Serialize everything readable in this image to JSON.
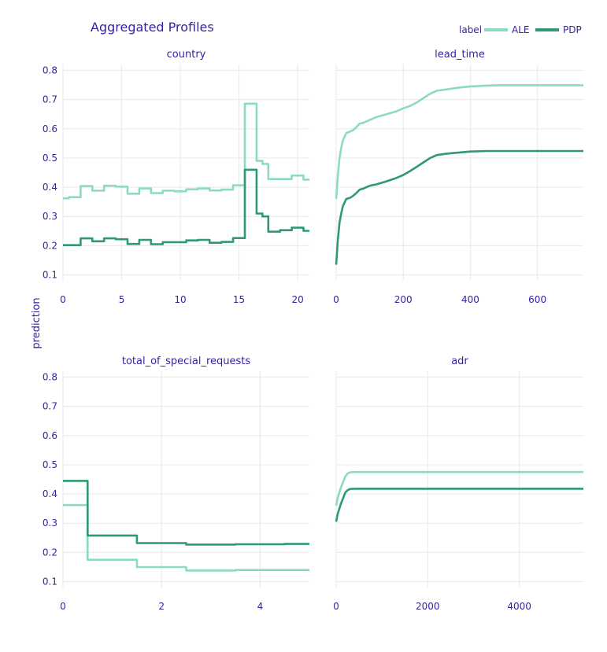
{
  "title": "Aggregated Profiles",
  "ylabel": "prediction",
  "legend": {
    "title": "label",
    "items": [
      "ALE",
      "PDP"
    ],
    "placement": "top-right"
  },
  "colors": {
    "ALE": "#8bdcbe",
    "PDP": "#2e9a6e",
    "text": "#371ea3",
    "grid": "#ebebeb"
  },
  "chart_data": [
    {
      "type": "line",
      "title": "country",
      "xlim": [
        0,
        21
      ],
      "ylim": [
        0.08,
        0.82
      ],
      "xticks": [
        0,
        5,
        10,
        15,
        20
      ],
      "yticks": [
        0.1,
        0.2,
        0.3,
        0.4,
        0.5,
        0.6,
        0.7,
        0.8
      ],
      "series": [
        {
          "name": "ALE",
          "x": [
            0,
            0.5,
            0.5,
            1.5,
            1.5,
            2.5,
            2.5,
            3.5,
            3.5,
            4.5,
            4.5,
            5.5,
            5.5,
            6.5,
            6.5,
            7.5,
            7.5,
            8.5,
            8.5,
            9.5,
            9.5,
            10.5,
            10.5,
            11.5,
            11.5,
            12.5,
            12.5,
            13.5,
            13.5,
            14.5,
            14.5,
            15.5,
            15.5,
            16.5,
            16.5,
            17,
            17,
            17.5,
            17.5,
            18.5,
            18.5,
            19.5,
            19.5,
            20.5,
            20.5,
            21
          ],
          "y": [
            0.362,
            0.362,
            0.366,
            0.366,
            0.404,
            0.404,
            0.388,
            0.388,
            0.405,
            0.405,
            0.402,
            0.402,
            0.378,
            0.378,
            0.396,
            0.396,
            0.38,
            0.38,
            0.388,
            0.388,
            0.386,
            0.386,
            0.393,
            0.393,
            0.396,
            0.396,
            0.389,
            0.389,
            0.392,
            0.392,
            0.407,
            0.407,
            0.686,
            0.686,
            0.49,
            0.49,
            0.48,
            0.48,
            0.428,
            0.428,
            0.428,
            0.428,
            0.44,
            0.44,
            0.426,
            0.426
          ]
        },
        {
          "name": "PDP",
          "x": [
            0,
            0.5,
            0.5,
            1.5,
            1.5,
            2.5,
            2.5,
            3.5,
            3.5,
            4.5,
            4.5,
            5.5,
            5.5,
            6.5,
            6.5,
            7.5,
            7.5,
            8.5,
            8.5,
            9.5,
            9.5,
            10.5,
            10.5,
            11.5,
            11.5,
            12.5,
            12.5,
            13.5,
            13.5,
            14.5,
            14.5,
            15.5,
            15.5,
            16.5,
            16.5,
            17,
            17,
            17.5,
            17.5,
            18.5,
            18.5,
            19.5,
            19.5,
            20.5,
            20.5,
            21
          ],
          "y": [
            0.202,
            0.202,
            0.202,
            0.202,
            0.225,
            0.225,
            0.215,
            0.215,
            0.225,
            0.225,
            0.222,
            0.222,
            0.206,
            0.206,
            0.22,
            0.22,
            0.205,
            0.205,
            0.212,
            0.212,
            0.212,
            0.212,
            0.218,
            0.218,
            0.22,
            0.22,
            0.21,
            0.21,
            0.213,
            0.213,
            0.226,
            0.226,
            0.46,
            0.46,
            0.31,
            0.31,
            0.3,
            0.3,
            0.248,
            0.248,
            0.253,
            0.253,
            0.262,
            0.262,
            0.251,
            0.251
          ]
        }
      ]
    },
    {
      "type": "line",
      "title": "lead_time",
      "xlim": [
        0,
        737
      ],
      "ylim": [
        0.08,
        0.82
      ],
      "xticks": [
        0,
        200,
        400,
        600
      ],
      "yticks": [
        0.1,
        0.2,
        0.3,
        0.4,
        0.5,
        0.6,
        0.7,
        0.8
      ],
      "series": [
        {
          "name": "ALE",
          "x": [
            0,
            5,
            10,
            15,
            20,
            30,
            40,
            50,
            60,
            70,
            80,
            100,
            120,
            150,
            180,
            200,
            220,
            240,
            260,
            280,
            300,
            330,
            360,
            400,
            450,
            500,
            600,
            737
          ],
          "y": [
            0.36,
            0.44,
            0.5,
            0.535,
            0.56,
            0.585,
            0.59,
            0.595,
            0.605,
            0.618,
            0.62,
            0.63,
            0.64,
            0.65,
            0.66,
            0.67,
            0.678,
            0.69,
            0.705,
            0.72,
            0.73,
            0.735,
            0.74,
            0.745,
            0.748,
            0.749,
            0.749,
            0.749
          ]
        },
        {
          "name": "PDP",
          "x": [
            0,
            5,
            10,
            15,
            20,
            30,
            40,
            50,
            60,
            70,
            80,
            100,
            120,
            150,
            180,
            200,
            220,
            240,
            260,
            280,
            300,
            330,
            360,
            400,
            450,
            500,
            600,
            737
          ],
          "y": [
            0.135,
            0.22,
            0.28,
            0.31,
            0.335,
            0.36,
            0.363,
            0.37,
            0.38,
            0.392,
            0.395,
            0.405,
            0.41,
            0.42,
            0.432,
            0.442,
            0.455,
            0.47,
            0.485,
            0.5,
            0.51,
            0.515,
            0.518,
            0.522,
            0.524,
            0.524,
            0.524,
            0.524
          ]
        }
      ]
    },
    {
      "type": "line",
      "title": "total_of_special_requests",
      "xlim": [
        0,
        5
      ],
      "ylim": [
        0.08,
        0.82
      ],
      "xticks": [
        0,
        2,
        4
      ],
      "yticks": [
        0.1,
        0.2,
        0.3,
        0.4,
        0.5,
        0.6,
        0.7,
        0.8
      ],
      "series": [
        {
          "name": "ALE",
          "x": [
            0,
            0.5,
            0.5,
            1.5,
            1.5,
            2.5,
            2.5,
            3.5,
            3.5,
            4.5,
            4.5,
            5
          ],
          "y": [
            0.362,
            0.362,
            0.175,
            0.175,
            0.15,
            0.15,
            0.138,
            0.138,
            0.14,
            0.14,
            0.14,
            0.14
          ]
        },
        {
          "name": "PDP",
          "x": [
            0,
            0.5,
            0.5,
            1.5,
            1.5,
            2.5,
            2.5,
            3.5,
            3.5,
            4.5,
            4.5,
            5
          ],
          "y": [
            0.445,
            0.445,
            0.258,
            0.258,
            0.232,
            0.232,
            0.227,
            0.227,
            0.228,
            0.228,
            0.229,
            0.229
          ]
        }
      ]
    },
    {
      "type": "line",
      "title": "adr",
      "xlim": [
        0,
        5400
      ],
      "ylim": [
        0.08,
        0.82
      ],
      "xticks": [
        0,
        2000,
        4000
      ],
      "yticks": [
        0.1,
        0.2,
        0.3,
        0.4,
        0.5,
        0.6,
        0.7,
        0.8
      ],
      "series": [
        {
          "name": "ALE",
          "x": [
            0,
            30,
            60,
            100,
            150,
            200,
            250,
            300,
            400,
            500,
            1000,
            2000,
            3000,
            4000,
            5400
          ],
          "y": [
            0.36,
            0.385,
            0.4,
            0.42,
            0.44,
            0.46,
            0.47,
            0.474,
            0.475,
            0.475,
            0.475,
            0.475,
            0.475,
            0.475,
            0.475
          ]
        },
        {
          "name": "PDP",
          "x": [
            0,
            30,
            60,
            100,
            150,
            200,
            250,
            300,
            400,
            500,
            1000,
            2000,
            3000,
            4000,
            5400
          ],
          "y": [
            0.305,
            0.33,
            0.345,
            0.365,
            0.385,
            0.405,
            0.413,
            0.417,
            0.418,
            0.418,
            0.418,
            0.418,
            0.418,
            0.418,
            0.418
          ]
        }
      ]
    }
  ]
}
